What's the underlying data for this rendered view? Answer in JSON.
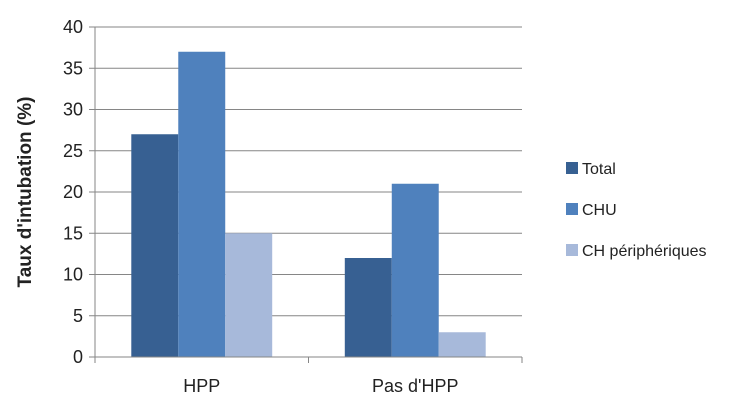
{
  "chart_data": {
    "type": "bar",
    "title": "",
    "xlabel": "",
    "ylabel": "Taux d'intubation (%)",
    "categories": [
      "HPP",
      "Pas d'HPP"
    ],
    "series": [
      {
        "name": "Total",
        "values": [
          27,
          12
        ],
        "color": "#376092"
      },
      {
        "name": "CHU",
        "values": [
          37,
          21
        ],
        "color": "#4f81bd"
      },
      {
        "name": "CH périphériques",
        "values": [
          15,
          3
        ],
        "color": "#a7b9da"
      }
    ],
    "ylim": [
      0,
      40
    ],
    "yticks": [
      "0",
      "5",
      "10",
      "15",
      "20",
      "25",
      "30",
      "35",
      "40"
    ],
    "grid": true,
    "legend_position": "right"
  }
}
